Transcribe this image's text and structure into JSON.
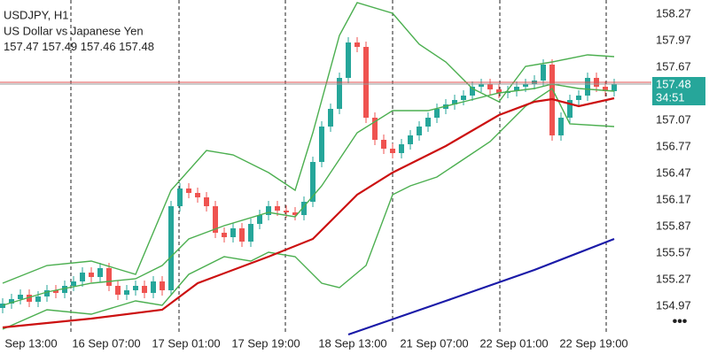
{
  "chart_data": {
    "type": "candlestick",
    "symbol": "USDJPY, H1",
    "description": "US Dollar vs Japanese Yen",
    "header_ohlc": [
      157.47,
      157.49,
      157.46,
      157.48
    ],
    "ylim": [
      154.65,
      158.43
    ],
    "yticks": [
      158.27,
      157.97,
      157.67,
      157.07,
      156.77,
      156.47,
      156.17,
      155.87,
      155.57,
      155.27,
      154.97
    ],
    "x_labels": [
      "Sep 13:00",
      "16 Sep 07:00",
      "17 Sep 01:00",
      "17 Sep 19:00",
      "18 Sep 13:00",
      "21 Sep 07:00",
      "22 Sep 01:00",
      "22 Sep 19:00"
    ],
    "up_color": "#26a69a",
    "down_color": "#ef5350",
    "open": [
      154.95,
      155.0,
      155.05,
      155.1,
      155.02,
      155.08,
      155.15,
      155.12,
      155.2,
      155.25,
      155.35,
      155.3,
      155.4,
      155.2,
      155.1,
      155.15,
      155.2,
      155.12,
      155.25,
      155.15,
      156.1,
      156.3,
      156.25,
      156.2,
      156.1,
      155.8,
      155.75,
      155.85,
      155.7,
      155.9,
      156.0,
      156.1,
      156.05,
      156.03,
      156.0,
      156.15,
      156.6,
      157.0,
      157.2,
      157.55,
      157.95,
      157.9,
      157.1,
      156.85,
      156.75,
      156.7,
      156.8,
      156.9,
      157.0,
      157.1,
      157.2,
      157.25,
      157.3,
      157.35,
      157.45,
      157.48,
      157.42,
      157.38,
      157.4,
      157.45,
      157.48,
      157.52,
      157.7,
      156.9,
      157.1,
      157.3,
      157.35,
      157.55,
      157.45,
      157.4
    ],
    "high": [
      155.06,
      155.11,
      155.16,
      155.16,
      155.14,
      155.21,
      155.21,
      155.26,
      155.31,
      155.41,
      155.41,
      155.46,
      155.46,
      155.26,
      155.21,
      155.26,
      155.26,
      155.31,
      155.31,
      156.16,
      156.36,
      156.36,
      156.31,
      156.26,
      156.16,
      155.86,
      155.91,
      155.91,
      155.96,
      156.06,
      156.16,
      156.16,
      156.11,
      156.09,
      156.21,
      156.66,
      157.06,
      157.26,
      157.61,
      158.01,
      158.01,
      157.96,
      157.16,
      156.91,
      156.81,
      156.86,
      156.96,
      157.06,
      157.16,
      157.26,
      157.31,
      157.36,
      157.41,
      157.51,
      157.54,
      157.54,
      157.48,
      157.46,
      157.51,
      157.54,
      157.58,
      157.76,
      157.76,
      157.16,
      157.36,
      157.41,
      157.61,
      157.61,
      157.51,
      157.54
    ],
    "low": [
      154.89,
      154.94,
      154.99,
      154.96,
      154.96,
      155.02,
      155.06,
      155.06,
      155.14,
      155.19,
      155.24,
      155.24,
      155.14,
      155.04,
      155.04,
      155.09,
      155.06,
      155.06,
      155.09,
      155.09,
      156.04,
      156.19,
      156.14,
      156.04,
      155.74,
      155.69,
      155.69,
      155.64,
      155.64,
      155.84,
      155.94,
      155.99,
      155.97,
      155.94,
      155.94,
      156.09,
      156.54,
      156.94,
      157.14,
      157.49,
      157.84,
      157.04,
      156.79,
      156.69,
      156.64,
      156.64,
      156.74,
      156.84,
      156.94,
      157.04,
      157.14,
      157.19,
      157.24,
      157.29,
      157.39,
      157.36,
      157.32,
      157.32,
      157.34,
      157.39,
      157.42,
      157.46,
      156.84,
      156.84,
      157.04,
      157.24,
      157.29,
      157.39,
      157.34,
      157.34
    ],
    "close": [
      155.0,
      155.05,
      155.1,
      155.02,
      155.08,
      155.15,
      155.12,
      155.2,
      155.25,
      155.35,
      155.3,
      155.4,
      155.2,
      155.1,
      155.15,
      155.2,
      155.12,
      155.25,
      155.15,
      156.1,
      156.3,
      156.25,
      156.2,
      156.1,
      155.8,
      155.75,
      155.85,
      155.7,
      155.9,
      156.0,
      156.1,
      156.05,
      156.03,
      156.0,
      156.15,
      156.6,
      157.0,
      157.2,
      157.55,
      157.95,
      157.9,
      157.1,
      156.85,
      156.75,
      156.7,
      156.8,
      156.9,
      157.0,
      157.1,
      157.2,
      157.25,
      157.3,
      157.35,
      157.45,
      157.48,
      157.42,
      157.38,
      157.4,
      157.45,
      157.48,
      157.52,
      157.7,
      156.9,
      157.1,
      157.3,
      157.35,
      157.55,
      157.45,
      157.4,
      157.48
    ],
    "lines": [
      {
        "color": "#4caf50",
        "x": [
          0,
          5,
          10,
          15,
          19,
          23,
          26,
          30,
          33,
          35,
          38,
          40,
          44,
          47,
          50,
          53,
          56,
          59,
          62,
          66,
          69
        ],
        "values": [
          155.23,
          155.43,
          155.48,
          155.33,
          156.28,
          156.73,
          156.68,
          156.48,
          156.28,
          156.93,
          158.03,
          158.4,
          158.28,
          157.93,
          157.73,
          157.43,
          157.28,
          157.68,
          157.73,
          157.81,
          157.79
        ]
      },
      {
        "color": "#4caf50",
        "x": [
          0,
          5,
          10,
          15,
          18,
          21,
          25,
          30,
          33,
          36,
          40,
          44,
          48,
          52,
          56,
          60,
          62,
          65,
          69
        ],
        "values": [
          154.98,
          155.13,
          155.23,
          155.28,
          155.43,
          155.73,
          155.88,
          156.03,
          155.98,
          156.33,
          156.93,
          157.18,
          157.18,
          157.28,
          157.38,
          157.43,
          157.48,
          157.43,
          157.4
        ]
      },
      {
        "color": "#4caf50",
        "x": [
          0,
          5,
          10,
          15,
          18,
          21,
          25,
          28,
          30,
          33,
          36,
          38,
          41,
          44,
          46,
          49,
          52,
          55,
          57,
          59,
          62,
          64,
          69
        ],
        "values": [
          154.71,
          154.93,
          154.88,
          155.03,
          154.98,
          155.33,
          155.53,
          155.48,
          155.58,
          155.53,
          155.23,
          155.18,
          155.43,
          156.23,
          156.33,
          156.43,
          156.63,
          156.83,
          157.03,
          157.23,
          157.43,
          157.03,
          157.0
        ]
      },
      {
        "color": "#cc1010",
        "x": [
          0,
          10,
          18,
          22,
          30,
          35,
          40,
          44,
          50,
          56,
          60,
          62,
          65,
          69
        ],
        "values": [
          154.73,
          154.83,
          154.93,
          155.23,
          155.53,
          155.73,
          156.23,
          156.48,
          156.78,
          157.13,
          157.28,
          157.31,
          157.23,
          157.32
        ]
      },
      {
        "color": "#1a1aa8",
        "x": [
          39,
          50,
          60,
          69
        ],
        "values": [
          154.65,
          155.03,
          155.38,
          155.73
        ]
      }
    ],
    "bid": 157.48,
    "ask": 157.5,
    "bid_color": "#26a69a",
    "ask_color": "#e05050",
    "timer": "34:51"
  }
}
